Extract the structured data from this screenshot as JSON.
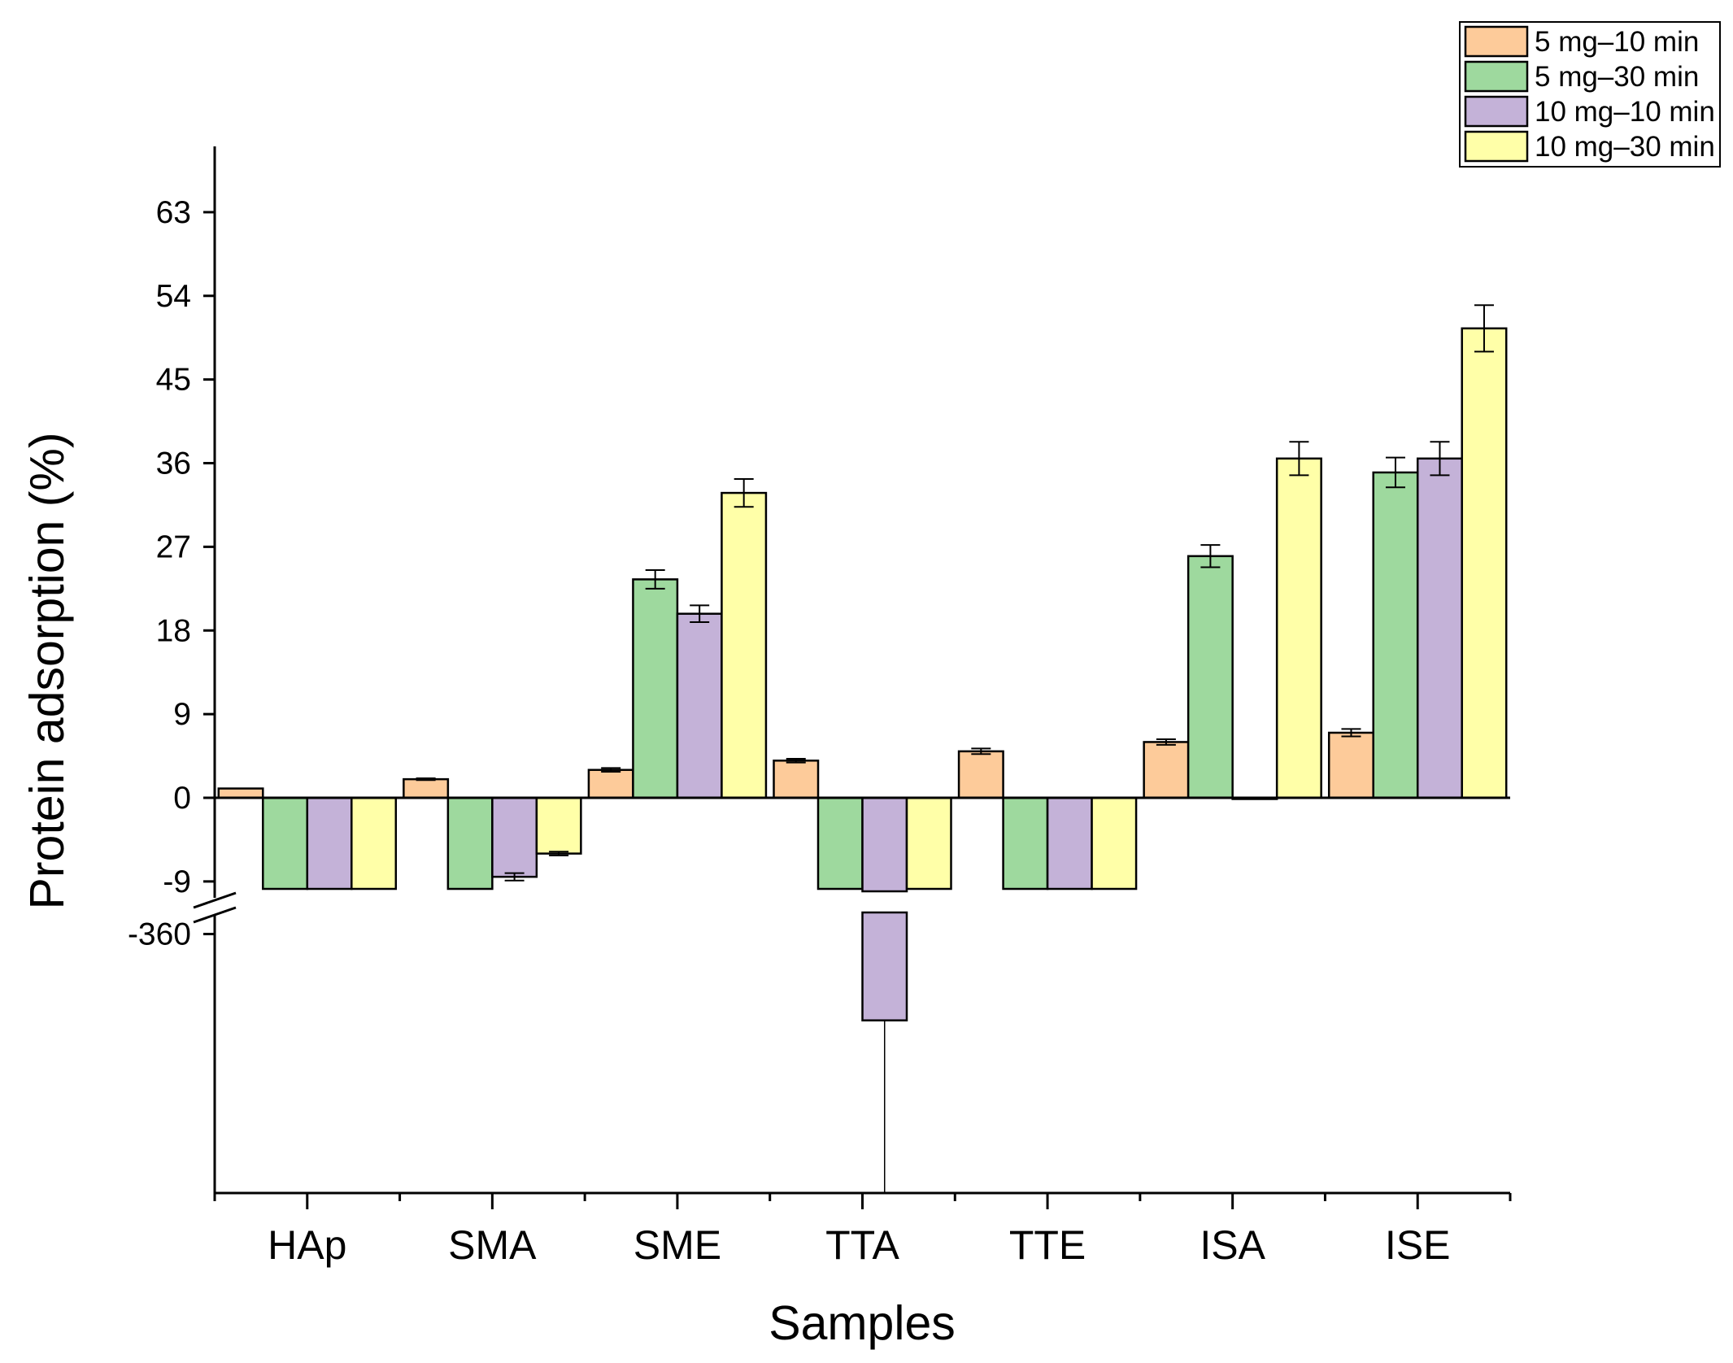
{
  "chart_data": {
    "type": "bar",
    "title": "",
    "xlabel": "Samples",
    "ylabel": "Protein adsorption (%)",
    "categories": [
      "HAp",
      "SMA",
      "SME",
      "TTA",
      "TTE",
      "ISA",
      "ISE"
    ],
    "y_ticks_upper": [
      "63",
      "54",
      "45",
      "36",
      "27",
      "18",
      "9",
      "0",
      "-9"
    ],
    "y_ticks_lower": [
      "-360"
    ],
    "ylim_upper": [
      -9.8,
      67
    ],
    "ylim_lower": [
      -480,
      -350
    ],
    "axis_break": true,
    "legend_position": "top-right",
    "colors": {
      "s1": "#FDCB9A",
      "s2": "#9ED99E",
      "s3": "#C4B2D8",
      "s4": "#FFFFA8",
      "axis": "#000000"
    },
    "series": [
      {
        "name": "5 mg–10 min",
        "values": [
          1.0,
          2.0,
          3.0,
          4.0,
          5.0,
          6.0,
          7.0
        ],
        "errors": [
          0,
          0.1,
          0.2,
          0.2,
          0.3,
          0.3,
          0.4
        ]
      },
      {
        "name": "5 mg–30 min",
        "values": [
          -9.8,
          -9.8,
          23.5,
          -9.8,
          -9.8,
          26.0,
          35.0
        ],
        "errors": [
          0,
          0,
          1.0,
          0,
          0,
          1.2,
          1.6
        ]
      },
      {
        "name": "10 mg–10 min",
        "values": [
          -9.8,
          -8.5,
          19.8,
          -400,
          -9.8,
          0.0,
          36.5
        ],
        "errors": [
          0,
          0.4,
          0.9,
          0,
          0,
          0,
          1.8
        ]
      },
      {
        "name": "10 mg–30 min",
        "values": [
          -9.8,
          -6.0,
          32.8,
          -9.8,
          -9.8,
          36.5,
          50.5
        ],
        "errors": [
          0,
          0.2,
          1.5,
          0,
          0,
          1.8,
          2.5
        ]
      }
    ]
  }
}
